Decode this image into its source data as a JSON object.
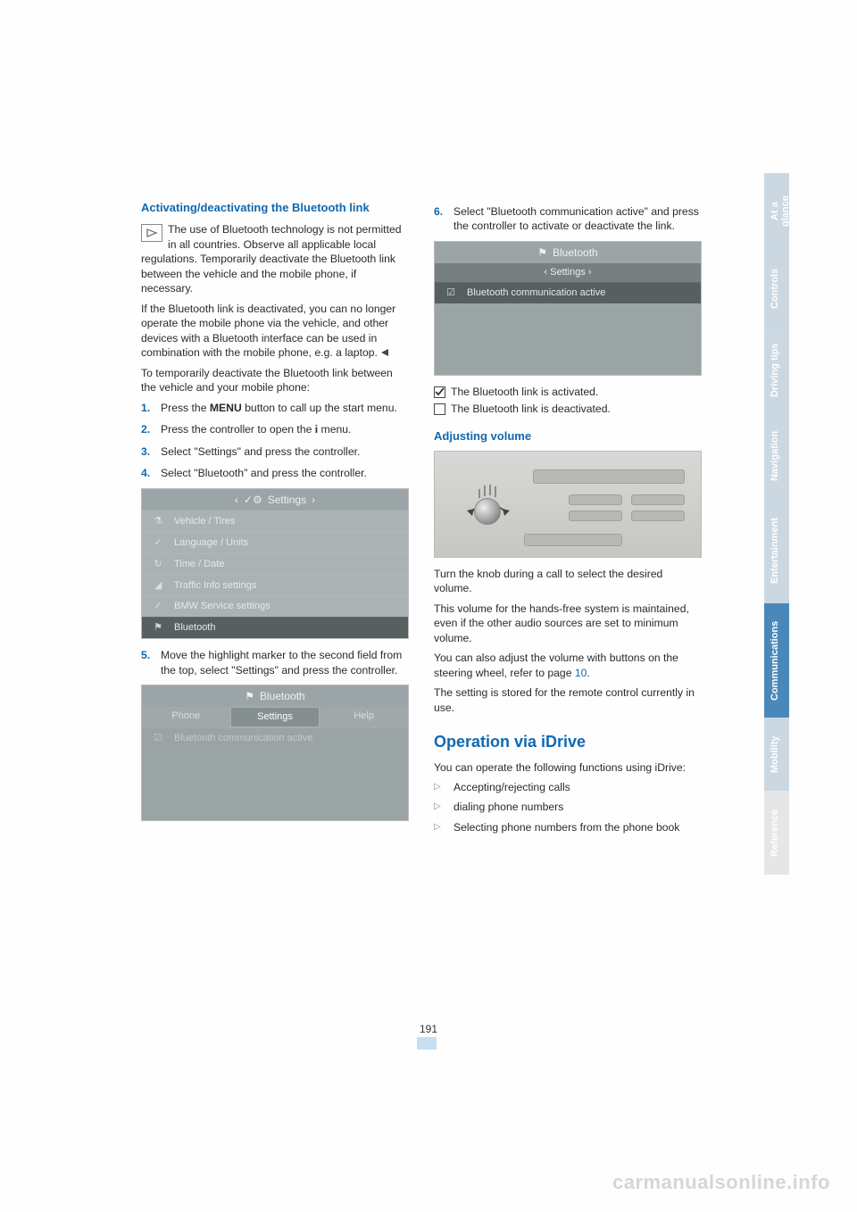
{
  "left": {
    "heading": "Activating/deactivating the Bluetooth link",
    "note": "The use of Bluetooth technology is not permitted in all countries. Observe all applicable local regulations. Temporarily deactivate the Bluetooth link between the vehicle and the mobile phone, if necessary.",
    "note2": "If the Bluetooth link is deactivated, you can no longer operate the mobile phone via the vehicle, and other devices with a Bluetooth interface can be used in combination with the mobile phone, e.g. a laptop.",
    "intro": "To temporarily deactivate the Bluetooth link between the vehicle and your mobile phone:",
    "steps": {
      "s1a": "Press the ",
      "s1b": "MENU",
      "s1c": " button to call up the start menu.",
      "s2a": "Press the controller to open the ",
      "s2b": " menu.",
      "s3": "Select \"Settings\" and press the controller.",
      "s4": "Select \"Bluetooth\" and press the controller.",
      "s5": "Move the highlight marker to the second field from the top, select \"Settings\" and press the controller."
    },
    "fig1": {
      "title": "Settings",
      "rows": [
        "Vehicle / Tires",
        "Language / Units",
        "Time / Date",
        "Traffic Info settings",
        "BMW Service settings",
        "Bluetooth"
      ],
      "icons": [
        "⚗",
        "✓",
        "↻",
        "◢",
        "✓",
        "⚑"
      ]
    },
    "fig2": {
      "title": "Bluetooth",
      "tabs": [
        "Phone",
        "Settings",
        "Help"
      ],
      "row": "Bluetooth communication active"
    }
  },
  "right": {
    "step6": "Select \"Bluetooth communication active\" and press the controller to activate or deactivate the link.",
    "fig3": {
      "title": "Bluetooth",
      "sub": "Settings",
      "row": "Bluetooth communication active"
    },
    "status_on": "The Bluetooth link is activated.",
    "status_off": "The Bluetooth link is deactivated.",
    "adjust_heading": "Adjusting volume",
    "adj_p1": "Turn the knob during a call to select the desired volume.",
    "adj_p2": "This volume for the hands-free system is maintained, even if the other audio sources are set to minimum volume.",
    "adj_p3a": "You can also adjust the volume with buttons on the steering wheel, refer to page ",
    "adj_p3_ref": "10",
    "adj_p3b": ".",
    "adj_p4": "The setting is stored for the remote control currently in use.",
    "op_heading": "Operation via iDrive",
    "op_intro": "You can operate the following functions using iDrive:",
    "op_items": [
      "Accepting/rejecting calls",
      "dialing phone numbers",
      "Selecting phone numbers from the phone book"
    ]
  },
  "page_number": "191",
  "side_tabs": [
    {
      "label": "At a glance",
      "bg": "#c8d5df"
    },
    {
      "label": "Controls",
      "bg": "#c8d5df"
    },
    {
      "label": "Driving tips",
      "bg": "#c8d5df"
    },
    {
      "label": "Navigation",
      "bg": "#c8d5df"
    },
    {
      "label": "Entertainment",
      "bg": "#c8d5df"
    },
    {
      "label": "Communications",
      "bg": "#3b7fb5"
    },
    {
      "label": "Mobility",
      "bg": "#c8d5df"
    },
    {
      "label": "Reference",
      "bg": "#e4e4e4"
    }
  ],
  "side_tab_heights": [
    86,
    86,
    98,
    94,
    118,
    128,
    82,
    94
  ],
  "watermark": "carmanualsonline.info"
}
